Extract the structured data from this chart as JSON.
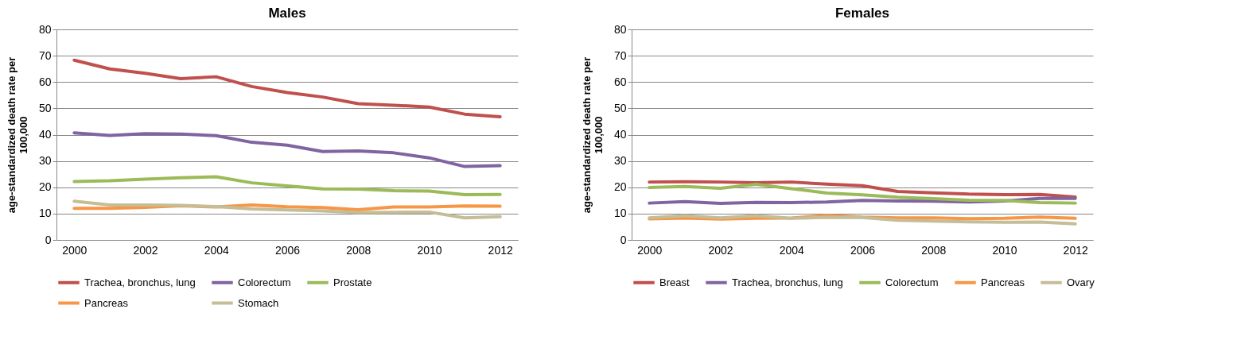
{
  "chart_data": [
    {
      "type": "line",
      "title": "Males",
      "ylabel": "age-standardized death rate per 100,000",
      "categories": [
        "2000",
        null,
        "2002",
        null,
        "2004",
        null,
        "2006",
        null,
        "2008",
        null,
        "2010",
        null,
        "2012"
      ],
      "ylim": [
        0,
        80
      ],
      "yticks": [
        0,
        10,
        20,
        30,
        40,
        50,
        60,
        70,
        80
      ],
      "grid": "y",
      "legend": "bottom",
      "marker": "none",
      "line_style": "solid",
      "series": [
        {
          "name": "Trachea, bronchus, lung",
          "color": "#c0504d",
          "values": [
            68.3,
            65,
            63.3,
            61.3,
            62,
            58.3,
            56,
            54.3,
            51.8,
            51.2,
            50.5,
            47.8,
            46.8
          ]
        },
        {
          "name": "Colorectum",
          "color": "#8064a2",
          "values": [
            40.7,
            39.7,
            40.4,
            40.2,
            39.6,
            37.1,
            36,
            33.6,
            33.8,
            33.1,
            31.2,
            27.9,
            28.2
          ]
        },
        {
          "name": "Prostate",
          "color": "#9bbb59",
          "values": [
            22.2,
            22.5,
            23.1,
            23.6,
            24,
            21.7,
            20.5,
            19.4,
            19.3,
            18.7,
            18.6,
            17.2,
            17.3
          ]
        },
        {
          "name": "Pancreas",
          "color": "#f79646",
          "values": [
            12,
            12,
            12.4,
            13,
            12.5,
            13.3,
            12.6,
            12.3,
            11.5,
            12.5,
            12.5,
            12.9,
            12.8
          ]
        },
        {
          "name": "Stomach",
          "color": "#c4bd97",
          "values": [
            14.7,
            13.3,
            13.3,
            13.1,
            12.7,
            11.8,
            11.4,
            11,
            10.4,
            10.5,
            10.6,
            8.4,
            8.8
          ]
        }
      ]
    },
    {
      "type": "line",
      "title": "Females",
      "ylabel": "age-standardized death rate per 100,000",
      "categories": [
        "2000",
        null,
        "2002",
        null,
        "2004",
        null,
        "2006",
        null,
        "2008",
        null,
        "2010",
        null,
        "2012"
      ],
      "ylim": [
        0,
        80
      ],
      "yticks": [
        0,
        10,
        20,
        30,
        40,
        50,
        60,
        70,
        80
      ],
      "grid": "y",
      "legend": "bottom",
      "marker": "none",
      "line_style": "solid",
      "series": [
        {
          "name": "Breast",
          "color": "#c0504d",
          "values": [
            22,
            22.1,
            22,
            21.7,
            22,
            21.2,
            20.6,
            18.4,
            17.9,
            17.4,
            17.2,
            17.3,
            16.3
          ]
        },
        {
          "name": "Trachea, bronchus, lung",
          "color": "#8064a2",
          "values": [
            14,
            14.6,
            13.9,
            14.3,
            14.2,
            14.4,
            15,
            14.8,
            14.7,
            14.4,
            14.8,
            15.8,
            15.8
          ]
        },
        {
          "name": "Colorectum",
          "color": "#9bbb59",
          "values": [
            19.9,
            20.3,
            19.6,
            21.1,
            19.5,
            17.8,
            17.1,
            16.2,
            15.7,
            15.1,
            15,
            14.2,
            14
          ]
        },
        {
          "name": "Pancreas",
          "color": "#f79646",
          "values": [
            8,
            8.3,
            7.9,
            8.2,
            8.3,
            9.3,
            8.7,
            8.4,
            8.4,
            8.1,
            8.2,
            8.7,
            8.2
          ]
        },
        {
          "name": "Ovary",
          "color": "#c4bd97",
          "values": [
            8.4,
            9.2,
            8.4,
            9.2,
            8.2,
            8.6,
            8.5,
            7.5,
            7.2,
            6.9,
            6.7,
            6.8,
            6.1
          ]
        }
      ]
    }
  ]
}
